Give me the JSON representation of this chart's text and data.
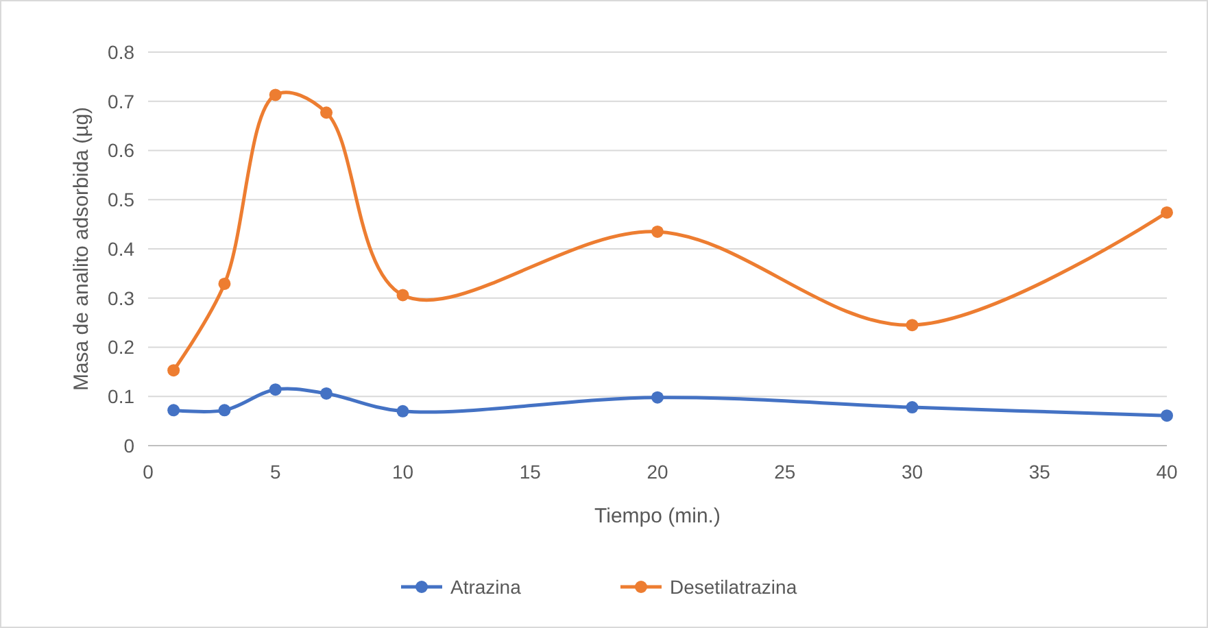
{
  "chart_data": {
    "type": "line",
    "xlabel": "Tiempo (min.)",
    "ylabel": "Masa de analito adsorbida (µg)",
    "x": [
      1,
      3,
      5,
      7,
      10,
      20,
      30,
      40
    ],
    "series": [
      {
        "name": "Atrazina",
        "color": "#4472c4",
        "values": [
          0.072,
          0.072,
          0.114,
          0.106,
          0.07,
          0.098,
          0.078,
          0.061
        ]
      },
      {
        "name": "Desetilatrazina",
        "color": "#ed7d31",
        "values": [
          0.153,
          0.329,
          0.713,
          0.677,
          0.306,
          0.435,
          0.245,
          0.474
        ]
      }
    ],
    "xlim": [
      0,
      40
    ],
    "xticks": [
      0,
      5,
      10,
      15,
      20,
      25,
      30,
      35,
      40
    ],
    "ylim": [
      0,
      0.8
    ],
    "yticks": [
      0,
      0.1,
      0.2,
      0.3,
      0.4,
      0.5,
      0.6,
      0.7,
      0.8
    ],
    "grid": "y",
    "legend": "bottom",
    "marker": "circle",
    "line_style": "solid"
  }
}
